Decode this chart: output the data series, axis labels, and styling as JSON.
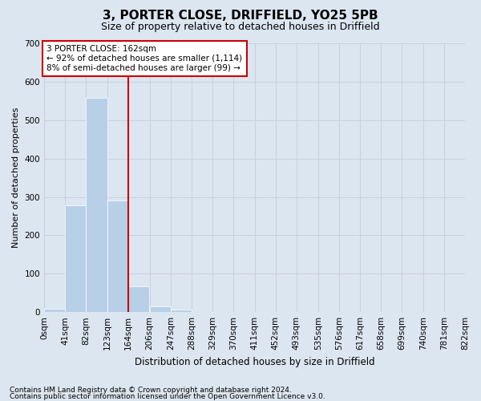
{
  "title": "3, PORTER CLOSE, DRIFFIELD, YO25 5PB",
  "subtitle": "Size of property relative to detached houses in Driffield",
  "xlabel": "Distribution of detached houses by size in Driffield",
  "ylabel": "Number of detached properties",
  "footnote1": "Contains HM Land Registry data © Crown copyright and database right 2024.",
  "footnote2": "Contains public sector information licensed under the Open Government Licence v3.0.",
  "annotation_line1": "3 PORTER CLOSE: 162sqm",
  "annotation_line2": "← 92% of detached houses are smaller (1,114)",
  "annotation_line3": "8% of semi-detached houses are larger (99) →",
  "bin_edges": [
    0,
    41,
    82,
    123,
    164,
    206,
    247,
    288,
    329,
    370,
    411,
    452,
    493,
    535,
    576,
    617,
    658,
    699,
    740,
    781,
    822
  ],
  "bin_labels": [
    "0sqm",
    "41sqm",
    "82sqm",
    "123sqm",
    "164sqm",
    "206sqm",
    "247sqm",
    "288sqm",
    "329sqm",
    "370sqm",
    "411sqm",
    "452sqm",
    "493sqm",
    "535sqm",
    "576sqm",
    "617sqm",
    "658sqm",
    "699sqm",
    "740sqm",
    "781sqm",
    "822sqm"
  ],
  "counts": [
    8,
    278,
    557,
    290,
    68,
    15,
    7,
    0,
    0,
    0,
    0,
    0,
    0,
    0,
    0,
    0,
    0,
    0,
    0,
    0
  ],
  "bar_color": "#b8cfe8",
  "redline_color": "#cc0000",
  "annotation_box_edgecolor": "#cc0000",
  "grid_color": "#c8d0dc",
  "bg_color": "#dce6f0",
  "ylim": [
    0,
    700
  ],
  "yticks": [
    0,
    100,
    200,
    300,
    400,
    500,
    600,
    700
  ],
  "title_fontsize": 11,
  "subtitle_fontsize": 9,
  "xlabel_fontsize": 8.5,
  "ylabel_fontsize": 8,
  "tick_fontsize": 7.5,
  "footnote_fontsize": 6.5,
  "annotation_fontsize": 7.5
}
